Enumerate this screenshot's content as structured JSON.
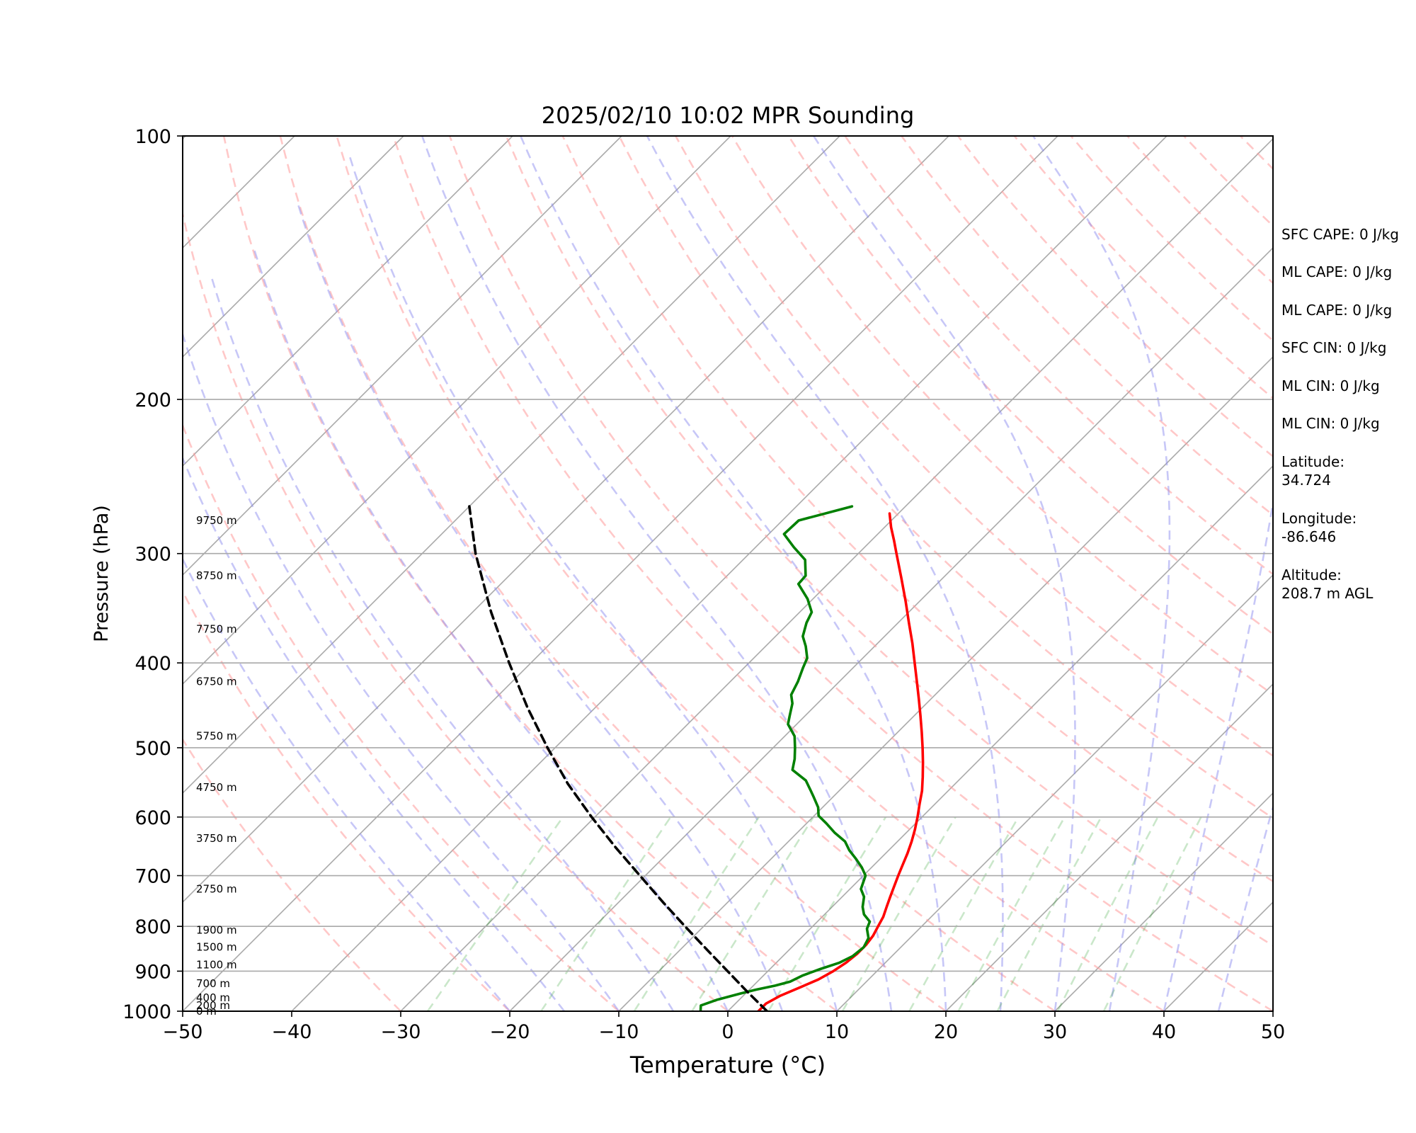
{
  "chart_data": {
    "type": "skew-t",
    "title": "2025/02/10 10:02 MPR Sounding",
    "xlabel": "Temperature (°C)",
    "ylabel": "Pressure (hPa)",
    "xlim": [
      -50,
      50
    ],
    "ylim": [
      1000,
      100
    ],
    "y_scale": "log",
    "x_ticks": [
      "−50",
      "−40",
      "−30",
      "−20",
      "−10",
      "0",
      "10",
      "20",
      "30",
      "40",
      "50"
    ],
    "y_ticks": [
      100,
      200,
      300,
      400,
      500,
      600,
      700,
      800,
      900,
      1000
    ],
    "grid": true,
    "height_labels": [
      {
        "p": 1000,
        "label": "0 m"
      },
      {
        "p": 985,
        "label": "200 m"
      },
      {
        "p": 965,
        "label": "400 m"
      },
      {
        "p": 930,
        "label": "700 m"
      },
      {
        "p": 885,
        "label": "1100 m"
      },
      {
        "p": 845,
        "label": "1500 m"
      },
      {
        "p": 808,
        "label": "1900 m"
      },
      {
        "p": 725,
        "label": "2750 m"
      },
      {
        "p": 635,
        "label": "3750 m"
      },
      {
        "p": 555,
        "label": "4750 m"
      },
      {
        "p": 485,
        "label": "5750 m"
      },
      {
        "p": 420,
        "label": "6750 m"
      },
      {
        "p": 366,
        "label": "7750 m"
      },
      {
        "p": 318,
        "label": "8750 m"
      },
      {
        "p": 275,
        "label": "9750 m"
      }
    ],
    "series": [
      {
        "variable": "temperature",
        "color": "#ff0000",
        "points": [
          [
            1000,
            2.8
          ],
          [
            980,
            2.8
          ],
          [
            960,
            3.4
          ],
          [
            940,
            4.4
          ],
          [
            920,
            5.4
          ],
          [
            900,
            6.0
          ],
          [
            880,
            6.4
          ],
          [
            860,
            6.6
          ],
          [
            840,
            6.6
          ],
          [
            820,
            6.4
          ],
          [
            800,
            6.0
          ],
          [
            780,
            5.6
          ],
          [
            760,
            5.0
          ],
          [
            740,
            4.4
          ],
          [
            720,
            3.8
          ],
          [
            700,
            3.2
          ],
          [
            680,
            2.6
          ],
          [
            660,
            2.0
          ],
          [
            640,
            1.3
          ],
          [
            620,
            0.5
          ],
          [
            600,
            -0.4
          ],
          [
            580,
            -1.4
          ],
          [
            560,
            -2.4
          ],
          [
            540,
            -3.6
          ],
          [
            520,
            -4.9
          ],
          [
            500,
            -6.3
          ],
          [
            480,
            -7.8
          ],
          [
            460,
            -9.4
          ],
          [
            440,
            -11.1
          ],
          [
            420,
            -12.9
          ],
          [
            400,
            -14.8
          ],
          [
            380,
            -16.8
          ],
          [
            360,
            -19.0
          ],
          [
            340,
            -21.3
          ],
          [
            320,
            -23.8
          ],
          [
            300,
            -26.5
          ],
          [
            290,
            -27.9
          ],
          [
            280,
            -29.4
          ],
          [
            270,
            -30.8
          ]
        ]
      },
      {
        "variable": "dewpoint",
        "color": "#008000",
        "points": [
          [
            1000,
            -2.5
          ],
          [
            985,
            -3.0
          ],
          [
            970,
            -2.0
          ],
          [
            955,
            -0.5
          ],
          [
            945,
            0.6
          ],
          [
            935,
            2.0
          ],
          [
            925,
            3.0
          ],
          [
            910,
            3.6
          ],
          [
            895,
            4.6
          ],
          [
            880,
            5.8
          ],
          [
            865,
            6.4
          ],
          [
            845,
            6.6
          ],
          [
            825,
            6.2
          ],
          [
            805,
            5.2
          ],
          [
            790,
            4.8
          ],
          [
            775,
            3.6
          ],
          [
            760,
            2.8
          ],
          [
            740,
            2.0
          ],
          [
            725,
            1.0
          ],
          [
            700,
            0.2
          ],
          [
            685,
            -0.9
          ],
          [
            670,
            -2.2
          ],
          [
            655,
            -3.6
          ],
          [
            640,
            -4.8
          ],
          [
            625,
            -6.6
          ],
          [
            610,
            -8.2
          ],
          [
            598,
            -9.6
          ],
          [
            585,
            -10.4
          ],
          [
            570,
            -11.7
          ],
          [
            560,
            -12.6
          ],
          [
            545,
            -14.0
          ],
          [
            530,
            -16.2
          ],
          [
            515,
            -17.0
          ],
          [
            500,
            -18.0
          ],
          [
            485,
            -19.1
          ],
          [
            470,
            -20.8
          ],
          [
            460,
            -21.4
          ],
          [
            445,
            -22.3
          ],
          [
            435,
            -23.2
          ],
          [
            420,
            -23.8
          ],
          [
            405,
            -24.6
          ],
          [
            395,
            -25.1
          ],
          [
            383,
            -26.3
          ],
          [
            373,
            -27.5
          ],
          [
            360,
            -28.4
          ],
          [
            350,
            -28.9
          ],
          [
            338,
            -30.5
          ],
          [
            325,
            -32.7
          ],
          [
            318,
            -32.8
          ],
          [
            305,
            -34.3
          ],
          [
            295,
            -36.5
          ],
          [
            285,
            -38.6
          ],
          [
            275,
            -38.5
          ],
          [
            265,
            -34.9
          ]
        ]
      },
      {
        "variable": "parcel_path",
        "color": "#000000",
        "points": [
          [
            1000,
            3.6
          ],
          [
            950,
            0.0
          ],
          [
            900,
            -3.7
          ],
          [
            850,
            -7.6
          ],
          [
            800,
            -11.7
          ],
          [
            750,
            -16.0
          ],
          [
            700,
            -20.5
          ],
          [
            650,
            -25.3
          ],
          [
            600,
            -30.3
          ],
          [
            550,
            -35.5
          ],
          [
            500,
            -40.7
          ],
          [
            450,
            -46.2
          ],
          [
            400,
            -52.0
          ],
          [
            350,
            -58.3
          ],
          [
            300,
            -65.1
          ],
          [
            265,
            -70.0
          ]
        ]
      }
    ],
    "reference_lines": {
      "isotherms": "gray, skewed",
      "dry_adiabats": "red dashed",
      "moist_adiabats": "blue dashed",
      "mixing_ratio": "green dashed"
    }
  },
  "info": {
    "sfc_cape": "SFC CAPE: 0 J/kg",
    "ml_cape": "ML CAPE: 0 J/kg",
    "ml_cape2": "ML CAPE: 0 J/kg",
    "sfc_cin": "SFC CIN: 0 J/kg",
    "ml_cin": "ML CIN: 0 J/kg",
    "ml_cin2": "ML CIN: 0 J/kg",
    "latitude": "Latitude:\n34.724",
    "longitude": "Longitude:\n-86.646",
    "altitude": "Altitude:\n208.7 m AGL"
  }
}
